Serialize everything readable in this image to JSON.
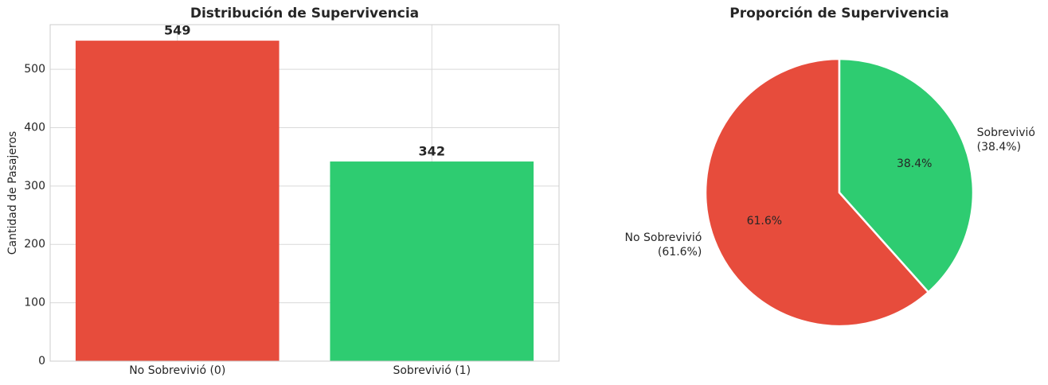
{
  "chart_data": [
    {
      "type": "bar",
      "title": "Distribución de Supervivencia",
      "y_label": "Cantidad de Pasajeros",
      "categories": [
        "No Sobrevivió (0)",
        "Sobrevivió (1)"
      ],
      "values": [
        549,
        342
      ],
      "colors": [
        "#e74c3c",
        "#2ecc71"
      ],
      "ylim": [
        0,
        576.45
      ],
      "yticks": [
        0,
        100,
        200,
        300,
        400,
        500
      ],
      "grid": true
    },
    {
      "type": "pie",
      "title": "Proporción de Supervivencia",
      "categories": [
        "No Sobrevivió",
        "Sobrevivió"
      ],
      "values": [
        61.6,
        38.4
      ],
      "value_labels": [
        "61.6%",
        "38.4%"
      ],
      "outer_value_labels": [
        "(61.6%)",
        "(38.4%)"
      ],
      "colors": [
        "#e74c3c",
        "#2ecc71"
      ]
    }
  ]
}
